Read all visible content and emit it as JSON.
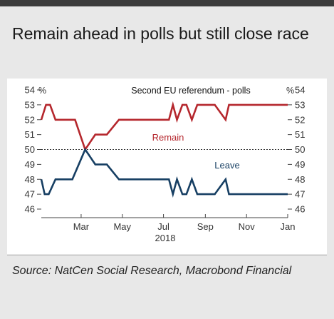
{
  "title": "Remain ahead in polls but still close race",
  "source": "Source: NatCen Social Research, Macrobond Financial",
  "colors": {
    "remain": "#b5272d",
    "leave": "#173f63",
    "axis": "#444444"
  },
  "chart_data": {
    "type": "line",
    "title": "Second EU referendum - polls",
    "ylabel_left": "%",
    "ylabel_right": "%",
    "ylim": [
      46,
      54
    ],
    "yticks": [
      46,
      47,
      48,
      49,
      50,
      51,
      52,
      53,
      54
    ],
    "reference_line": 50,
    "x_ticks": [
      {
        "label": "Mar",
        "x": "2018-03-01"
      },
      {
        "label": "May",
        "x": "2018-05-01"
      },
      {
        "label": "Jul",
        "x": "2018-07-01"
      },
      {
        "label": "Sep",
        "x": "2018-09-01"
      },
      {
        "label": "Nov",
        "x": "2018-11-01"
      },
      {
        "label": "Jan",
        "x": "2019-01-01"
      }
    ],
    "x_year_label": "2018",
    "x_range": [
      "2018-01-01",
      "2019-01-01"
    ],
    "series": [
      {
        "name": "Remain",
        "color": "#b5272d",
        "x": [
          "2018-01-01",
          "2018-01-08",
          "2018-01-14",
          "2018-01-22",
          "2018-02-20",
          "2018-03-07",
          "2018-03-22",
          "2018-04-08",
          "2018-04-26",
          "2018-07-09",
          "2018-07-15",
          "2018-07-21",
          "2018-07-29",
          "2018-08-04",
          "2018-08-12",
          "2018-08-20",
          "2018-09-15",
          "2018-10-01",
          "2018-10-06",
          "2019-01-01"
        ],
        "values": [
          52,
          53,
          53,
          52,
          52,
          50,
          51,
          51,
          52,
          52,
          53,
          52,
          53,
          53,
          52,
          53,
          53,
          52,
          53,
          53
        ]
      },
      {
        "name": "Leave",
        "color": "#173f63",
        "x": [
          "2018-01-01",
          "2018-01-06",
          "2018-01-12",
          "2018-01-22",
          "2018-02-16",
          "2018-03-07",
          "2018-03-22",
          "2018-04-08",
          "2018-04-26",
          "2018-07-09",
          "2018-07-15",
          "2018-07-21",
          "2018-07-29",
          "2018-08-04",
          "2018-08-12",
          "2018-08-20",
          "2018-09-15",
          "2018-10-01",
          "2018-10-06",
          "2019-01-01"
        ],
        "values": [
          48,
          47,
          47,
          48,
          48,
          50,
          49,
          49,
          48,
          48,
          47,
          48,
          47,
          47,
          48,
          47,
          47,
          48,
          47,
          47
        ]
      }
    ]
  }
}
